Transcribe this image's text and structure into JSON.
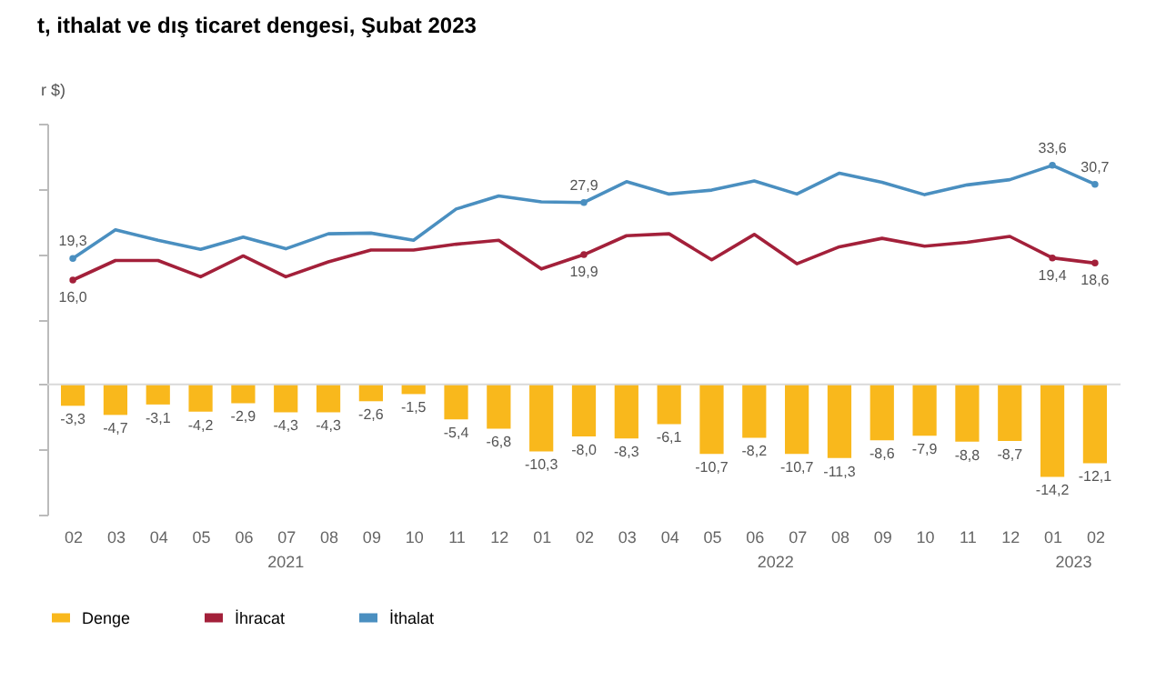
{
  "chart_data": {
    "type": "bar",
    "title": "t, ithalat ve dış ticaret dengesi, Şubat 2023",
    "ylabel": "r $)",
    "categories": [
      "02",
      "03",
      "04",
      "05",
      "06",
      "07",
      "08",
      "09",
      "10",
      "11",
      "12",
      "01",
      "02",
      "03",
      "04",
      "05",
      "06",
      "07",
      "08",
      "09",
      "10",
      "11",
      "12",
      "01",
      "02"
    ],
    "series": [
      {
        "name": "Denge",
        "color": "#f9b81c",
        "values": [
          -3.3,
          -4.7,
          -3.1,
          -4.2,
          -2.9,
          -4.3,
          -4.3,
          -2.6,
          -1.5,
          -5.4,
          -6.8,
          -10.3,
          -8.0,
          -8.3,
          -6.1,
          -10.7,
          -8.2,
          -10.7,
          -11.3,
          -8.6,
          -7.9,
          -8.8,
          -8.7,
          -14.2,
          -12.1
        ],
        "value_labels": [
          "-3,3",
          "-4,7",
          "-3,1",
          "-4,2",
          "-2,9",
          "-4,3",
          "-4,3",
          "-2,6",
          "-1,5",
          "-5,4",
          "-6,8",
          "-10,3",
          "-8,0",
          "-8,3",
          "-6,1",
          "-10,7",
          "-8,2",
          "-10,7",
          "-11,3",
          "-8,6",
          "-7,9",
          "-8,8",
          "-8,7",
          "-14,2",
          "-12,1"
        ]
      },
      {
        "name": "İhracat",
        "type": "line",
        "color": "#a3203a",
        "values": [
          16.0,
          19.0,
          19.0,
          16.5,
          19.7,
          16.5,
          18.8,
          20.6,
          20.6,
          21.5,
          22.1,
          17.7,
          19.9,
          22.8,
          23.1,
          19.1,
          23.0,
          18.5,
          21.1,
          22.4,
          21.2,
          21.8,
          22.7,
          19.4,
          18.6
        ],
        "value_labels": [
          "16,0",
          null,
          null,
          null,
          null,
          null,
          null,
          null,
          null,
          null,
          null,
          null,
          "19,9",
          null,
          null,
          null,
          null,
          null,
          null,
          null,
          null,
          null,
          null,
          "19,4",
          "18,6"
        ]
      },
      {
        "name": "İthalat",
        "type": "line",
        "color": "#4a8fc0",
        "values": [
          19.3,
          23.7,
          22.1,
          20.7,
          22.6,
          20.8,
          23.1,
          23.2,
          22.1,
          26.9,
          28.9,
          28.0,
          27.9,
          31.1,
          29.2,
          29.8,
          31.2,
          29.2,
          32.4,
          31.0,
          29.1,
          30.6,
          31.4,
          33.6,
          30.7
        ],
        "value_labels": [
          "19,3",
          null,
          null,
          null,
          null,
          null,
          null,
          null,
          null,
          null,
          null,
          null,
          "27,9",
          null,
          null,
          null,
          null,
          null,
          null,
          null,
          null,
          null,
          null,
          "33,6",
          "30,7"
        ]
      }
    ],
    "ylim": [
      -20,
      40
    ],
    "yticks": [
      {
        "value": -20,
        "label": null
      },
      {
        "value": -10,
        "label": null
      },
      {
        "value": 0,
        "label": null
      },
      {
        "value": 10,
        "label": null
      },
      {
        "value": 20,
        "label": null
      },
      {
        "value": 30,
        "label": null
      },
      {
        "value": 40,
        "label": null
      }
    ],
    "tick_labels": "x",
    "ref_lines": [
      {
        "axis": "y",
        "value": 0,
        "color": "#d9d9d9"
      }
    ],
    "annotations": [
      "2021",
      "2022",
      "2023"
    ],
    "legend": "bottom",
    "grid": false
  }
}
